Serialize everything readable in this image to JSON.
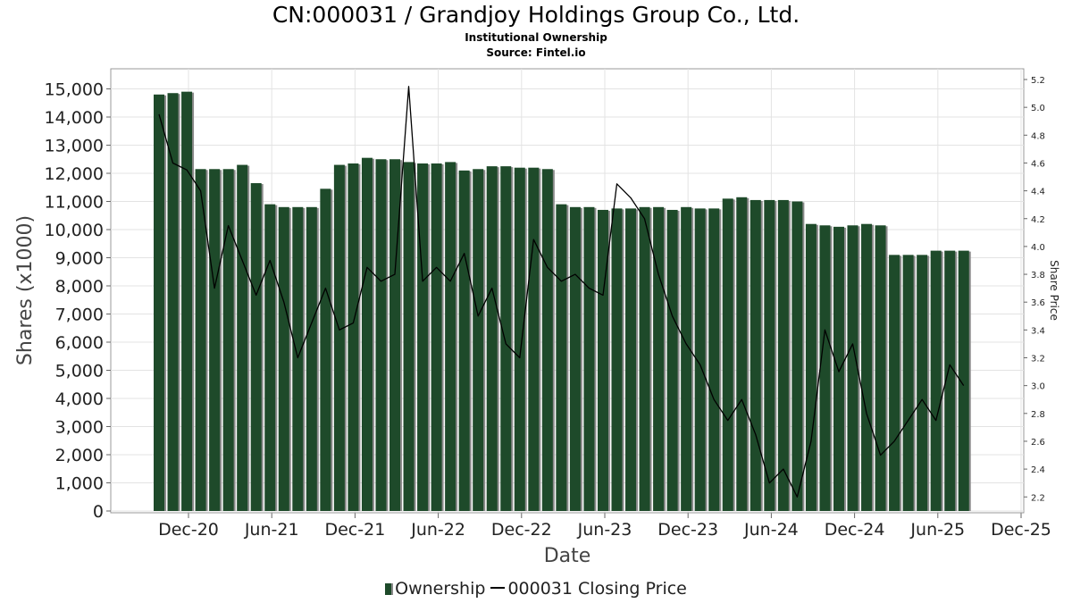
{
  "chart_data": {
    "type": "bar",
    "title": "CN:000031 / Grandjoy Holdings Group Co., Ltd.",
    "subtitle": "Institutional Ownership",
    "source": "Source: Fintel.io",
    "xlabel": "Date",
    "ylabel": "Shares (x1000)",
    "y2label": "Share Price",
    "ylim": [
      0,
      15500
    ],
    "y2lim": [
      2.1,
      5.25
    ],
    "y_ticks": [
      "0",
      "1,000",
      "2,000",
      "3,000",
      "4,000",
      "5,000",
      "6,000",
      "7,000",
      "8,000",
      "9,000",
      "10,000",
      "11,000",
      "12,000",
      "13,000",
      "14,000",
      "15,000"
    ],
    "y2_ticks": [
      "2.2",
      "2.4",
      "2.6",
      "2.8",
      "3.0",
      "3.2",
      "3.4",
      "3.6",
      "3.8",
      "4.0",
      "4.2",
      "4.4",
      "4.6",
      "4.8",
      "5.0",
      "5.2"
    ],
    "x_ticks": [
      "Dec-20",
      "Jun-21",
      "Dec-21",
      "Jun-22",
      "Dec-22",
      "Jun-23",
      "Dec-23",
      "Jun-24",
      "Dec-24",
      "Jun-25",
      "Dec-25"
    ],
    "grid": true,
    "legend_position": "bottom",
    "series": [
      {
        "name": "Ownership",
        "type": "bar",
        "color": "#1e4a2a",
        "values": [
          14800,
          14850,
          14900,
          12150,
          12150,
          12150,
          12300,
          11650,
          10900,
          10800,
          10800,
          10800,
          11450,
          12300,
          12350,
          12550,
          12500,
          12500,
          12400,
          12350,
          12350,
          12400,
          12100,
          12150,
          12250,
          12250,
          12200,
          12200,
          12150,
          10900,
          10800,
          10800,
          10700,
          10750,
          10750,
          10800,
          10800,
          10700,
          10800,
          10750,
          10750,
          11100,
          11150,
          11050,
          11050,
          11050,
          11000,
          10200,
          10150,
          10100,
          10150,
          10200,
          10150,
          9100,
          9100,
          9100,
          9250,
          9250,
          9250
        ]
      },
      {
        "name": "000031 Closing Price",
        "type": "line",
        "color": "#000000",
        "values": [
          4.95,
          4.6,
          4.55,
          4.4,
          3.7,
          4.15,
          3.9,
          3.65,
          3.9,
          3.6,
          3.2,
          3.45,
          3.7,
          3.4,
          3.45,
          3.85,
          3.75,
          3.8,
          5.15,
          3.75,
          3.85,
          3.75,
          3.95,
          3.5,
          3.7,
          3.3,
          3.2,
          4.05,
          3.85,
          3.75,
          3.8,
          3.7,
          3.65,
          4.45,
          4.35,
          4.2,
          3.8,
          3.5,
          3.3,
          3.15,
          2.9,
          2.75,
          2.9,
          2.65,
          2.3,
          2.4,
          2.2,
          2.6,
          3.4,
          3.1,
          3.3,
          2.8,
          2.5,
          2.6,
          2.75,
          2.9,
          2.75,
          3.15,
          3.0
        ]
      }
    ]
  }
}
